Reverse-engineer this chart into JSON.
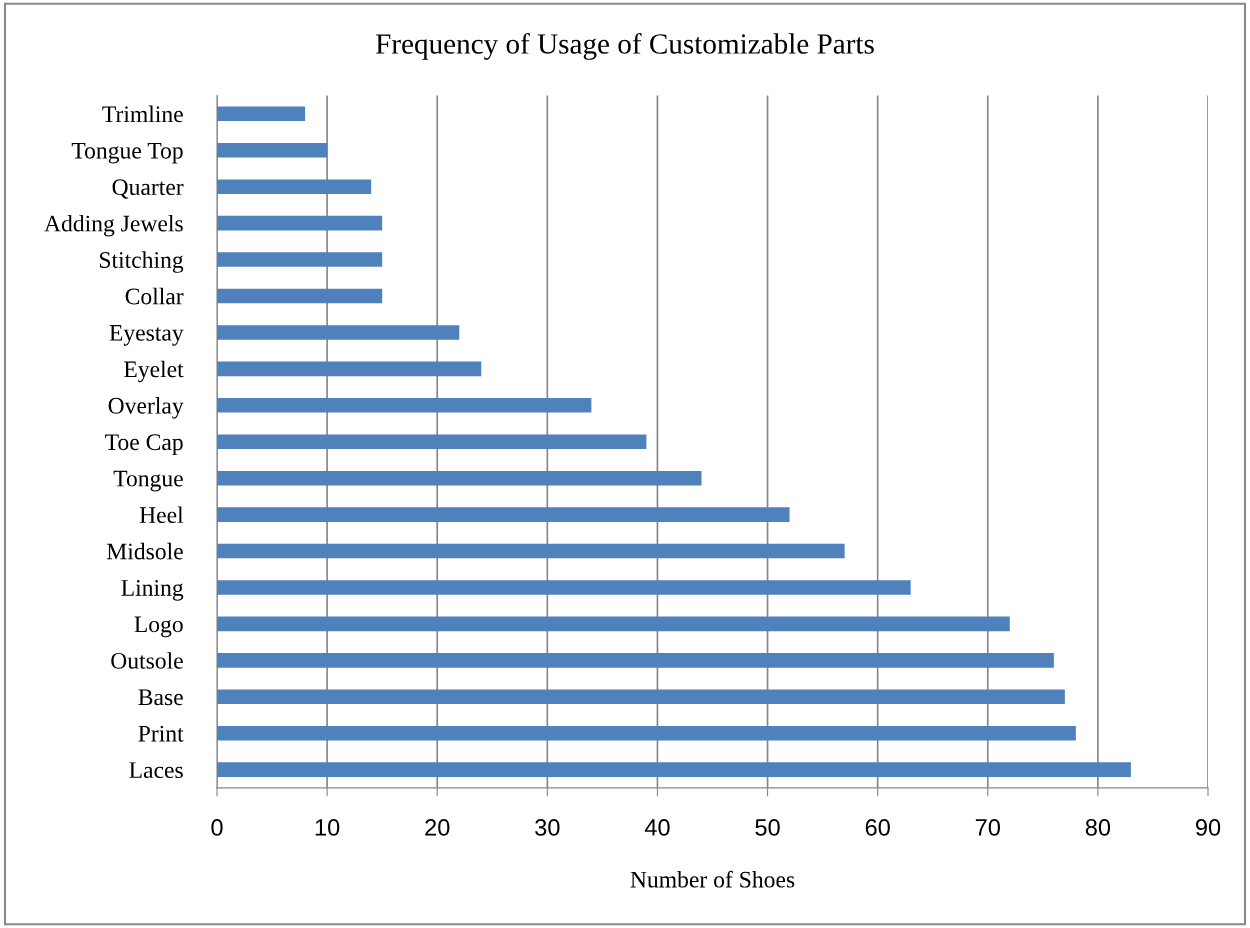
{
  "chart_data": {
    "type": "bar",
    "orientation": "horizontal",
    "title": "Frequency of Usage of Customizable Parts",
    "xlabel": "Number of Shoes",
    "categories": [
      "Trimline",
      "Tongue Top",
      "Quarter",
      "Adding Jewels",
      "Stitching",
      "Collar",
      "Eyestay",
      "Eyelet",
      "Overlay",
      "Toe Cap",
      "Tongue",
      "Heel",
      "Midsole",
      "Lining",
      "Logo",
      "Outsole",
      "Base",
      "Print",
      "Laces"
    ],
    "values": [
      8,
      10,
      14,
      15,
      15,
      15,
      22,
      24,
      34,
      39,
      44,
      52,
      57,
      63,
      72,
      76,
      77,
      78,
      83
    ],
    "color": "#4f81bd",
    "xlim": [
      0,
      90
    ],
    "xticks": [
      0,
      10,
      20,
      30,
      40,
      50,
      60,
      70,
      80,
      90
    ],
    "grid": "x"
  }
}
